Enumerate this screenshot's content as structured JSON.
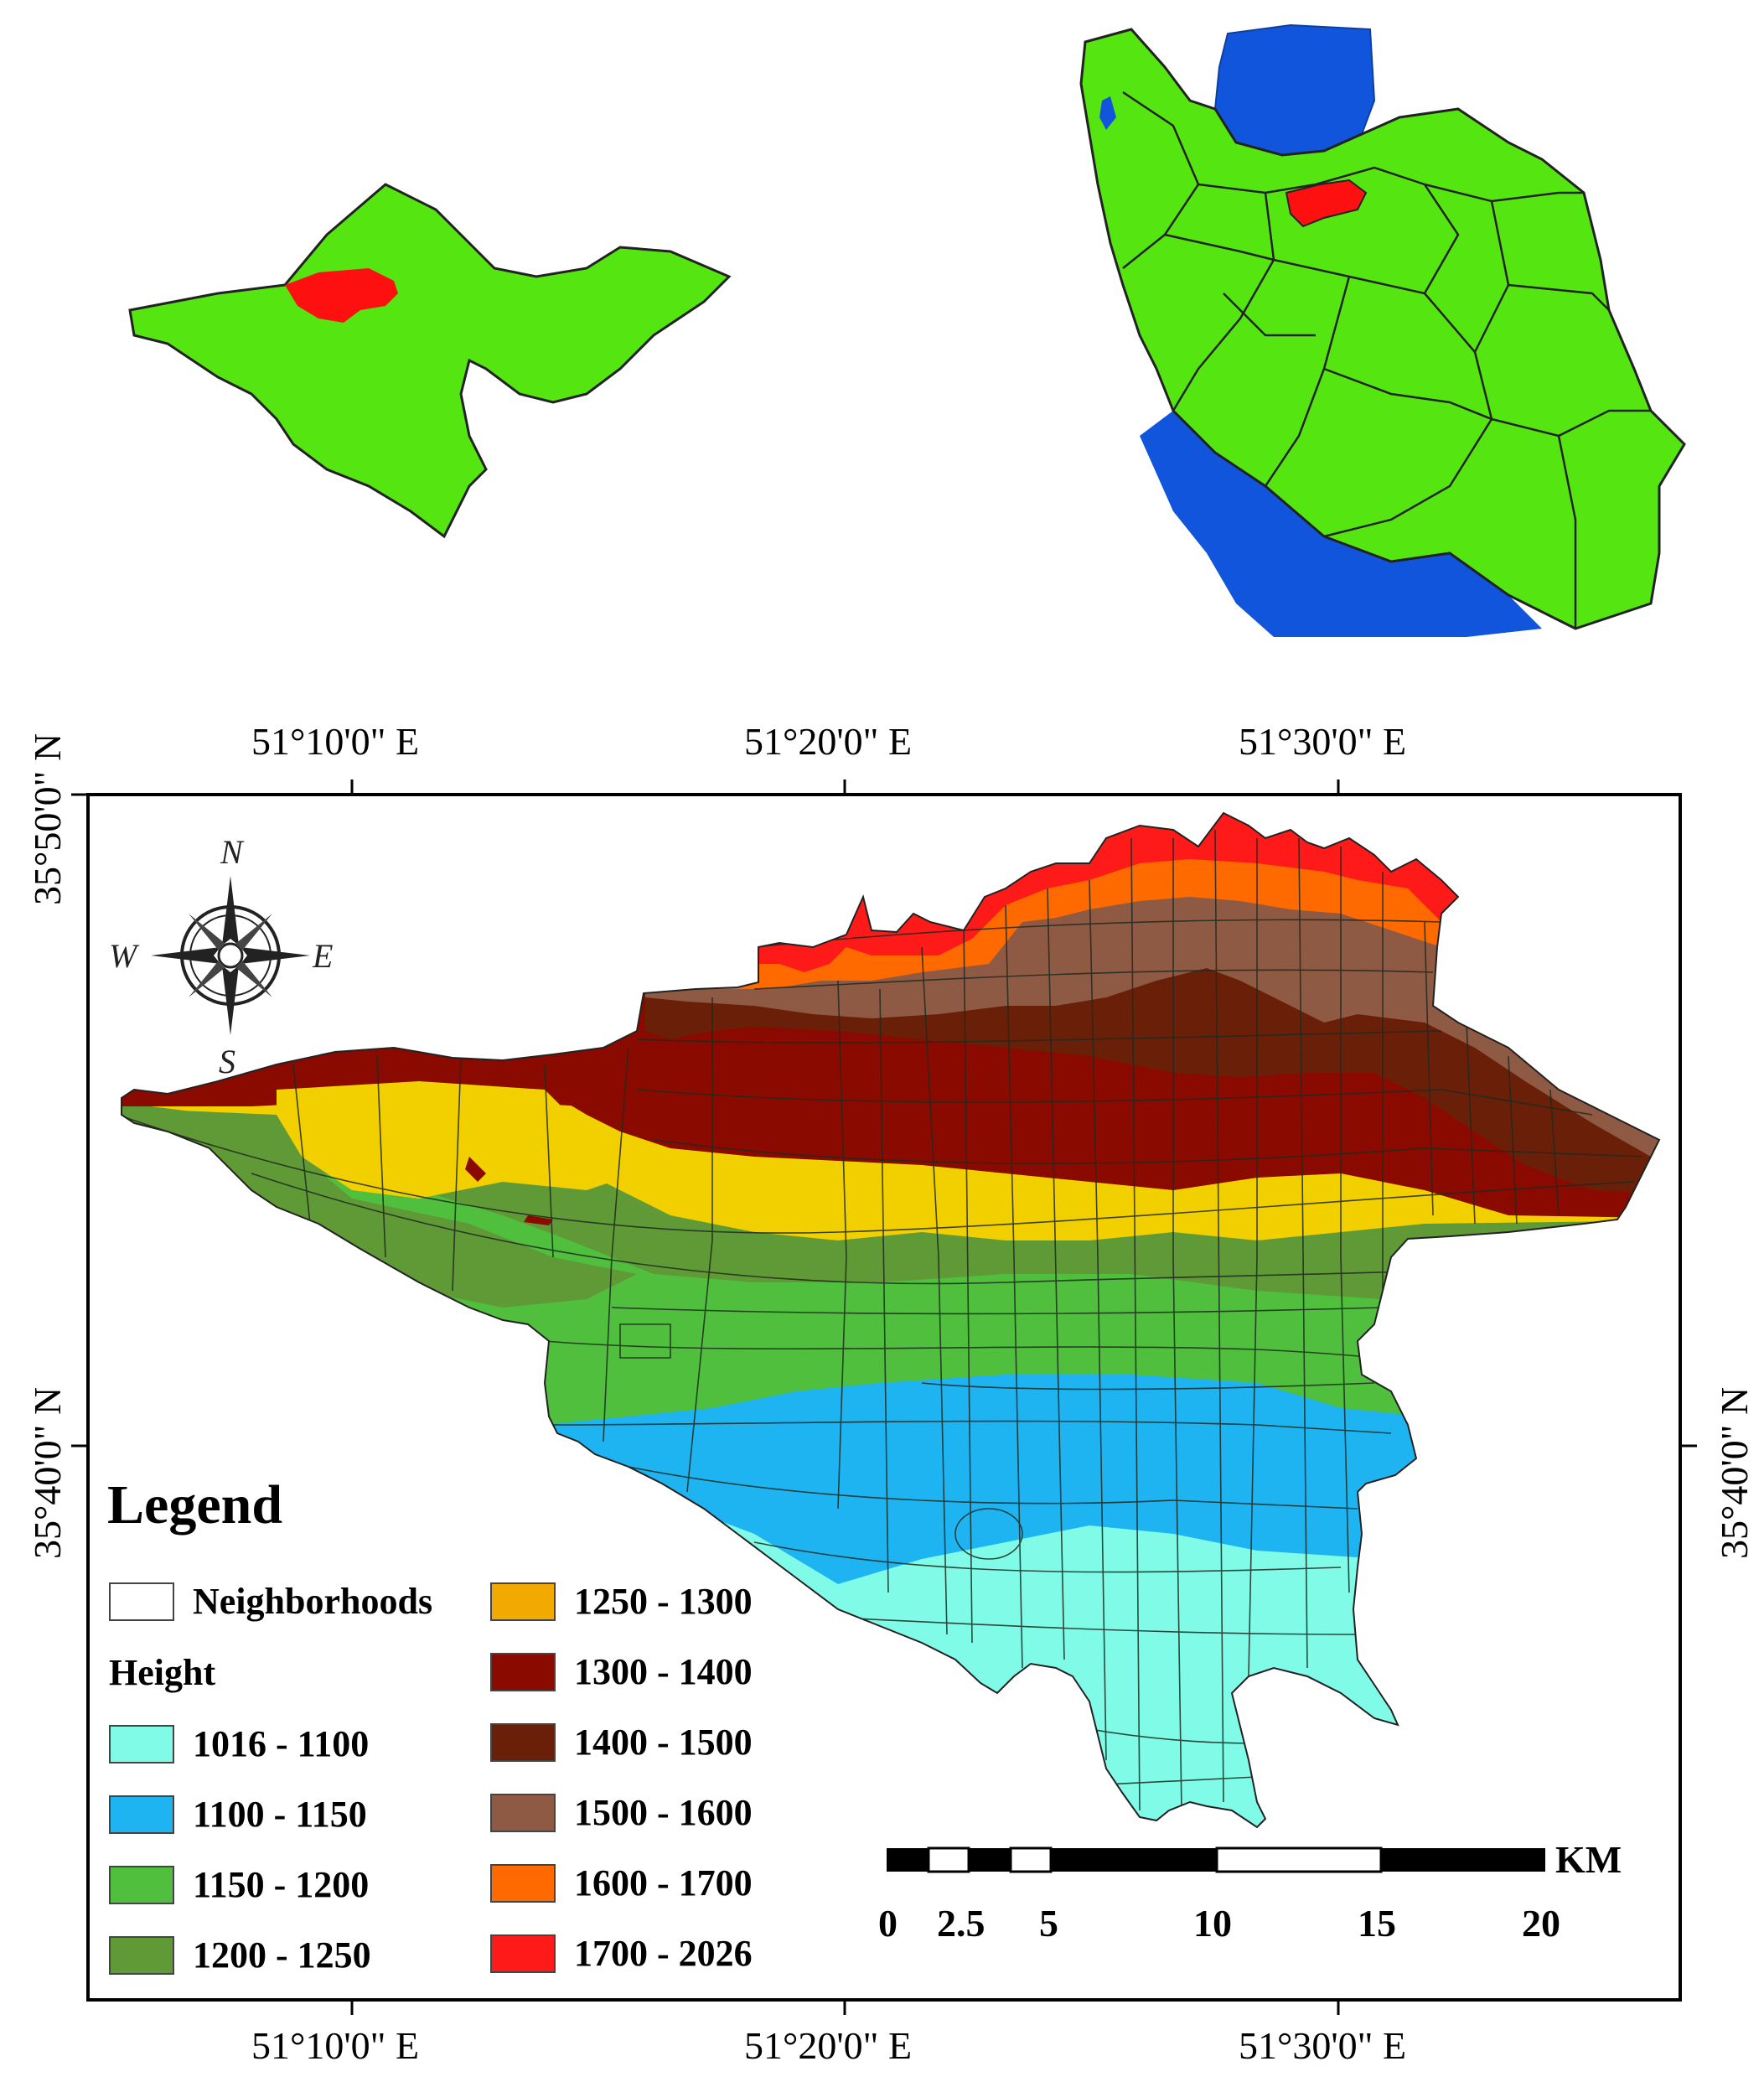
{
  "axes": {
    "top_lon_labels": [
      "51°10'0\"  E",
      "51°20'0\"  E",
      "51°30'0\"  E"
    ],
    "bottom_lon_labels": [
      "51°10'0\"  E",
      "51°20'0\"  E",
      "51°30'0\"  E"
    ],
    "left_lat_labels": [
      "35°50'0\" N",
      "35°40'0\" N"
    ],
    "right_lat_labels": [
      "35°40'0\" N"
    ]
  },
  "compass": {
    "n": "N",
    "s": "S",
    "e": "E",
    "w": "W",
    "icon": "compass-rose-icon"
  },
  "legend": {
    "title": "Legend",
    "neighborhoods_label": "Neighborhoods",
    "height_heading": "Height",
    "classes": [
      {
        "label": "1016 - 1100",
        "color": "#7ffbe7"
      },
      {
        "label": "1100 - 1150",
        "color": "#1eb4f2"
      },
      {
        "label": "1150 - 1200",
        "color": "#4fbf3d"
      },
      {
        "label": "1200 - 1250",
        "color": "#5f9a36"
      },
      {
        "label": "1250 - 1300",
        "color": "#f2a900"
      },
      {
        "label": "1300 - 1400",
        "color": "#8b0a00"
      },
      {
        "label": "1400 - 1500",
        "color": "#6a2008"
      },
      {
        "label": "1500 - 1600",
        "color": "#8f5a44"
      },
      {
        "label": "1600 - 1700",
        "color": "#ff6a00"
      },
      {
        "label": "1700 - 2026",
        "color": "#ff1a1a"
      }
    ]
  },
  "scalebar": {
    "unit": "KM",
    "ticks": [
      "0",
      "2.5",
      "5",
      "10",
      "15",
      "20"
    ]
  },
  "colors": {
    "inset_land": "#55e612",
    "inset_highlight": "#ff1010",
    "inset_water": "#1155dd",
    "neighborhood_lines": "#1f2a1f"
  }
}
